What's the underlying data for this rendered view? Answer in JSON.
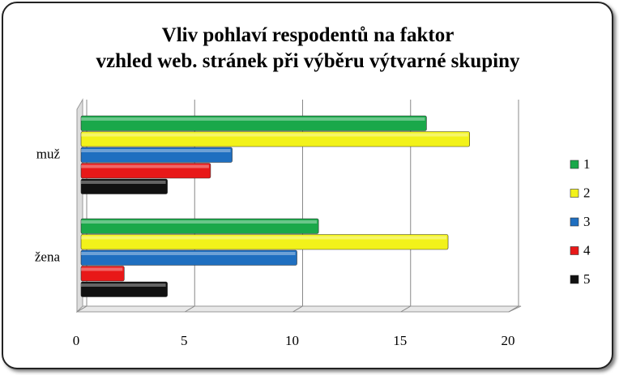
{
  "chart_data": {
    "type": "hbar",
    "title": "Vliv pohlaví respodentů na faktor vzhled web. stránek při výběru výtvarné skupiny",
    "categories": [
      "muž",
      "žena"
    ],
    "series": [
      {
        "name": "1",
        "color": "#1aa84a",
        "values": [
          16,
          11
        ]
      },
      {
        "name": "2",
        "color": "#f2f21a",
        "values": [
          18,
          17
        ]
      },
      {
        "name": "3",
        "color": "#1f6fc0",
        "values": [
          7,
          10
        ]
      },
      {
        "name": "4",
        "color": "#e81818",
        "values": [
          6,
          2
        ]
      },
      {
        "name": "5",
        "color": "#111111",
        "values": [
          4,
          4
        ]
      }
    ],
    "xlim": [
      0,
      20
    ],
    "xticks": [
      0,
      5,
      10,
      15,
      20
    ],
    "grid": true,
    "legend": "right"
  }
}
